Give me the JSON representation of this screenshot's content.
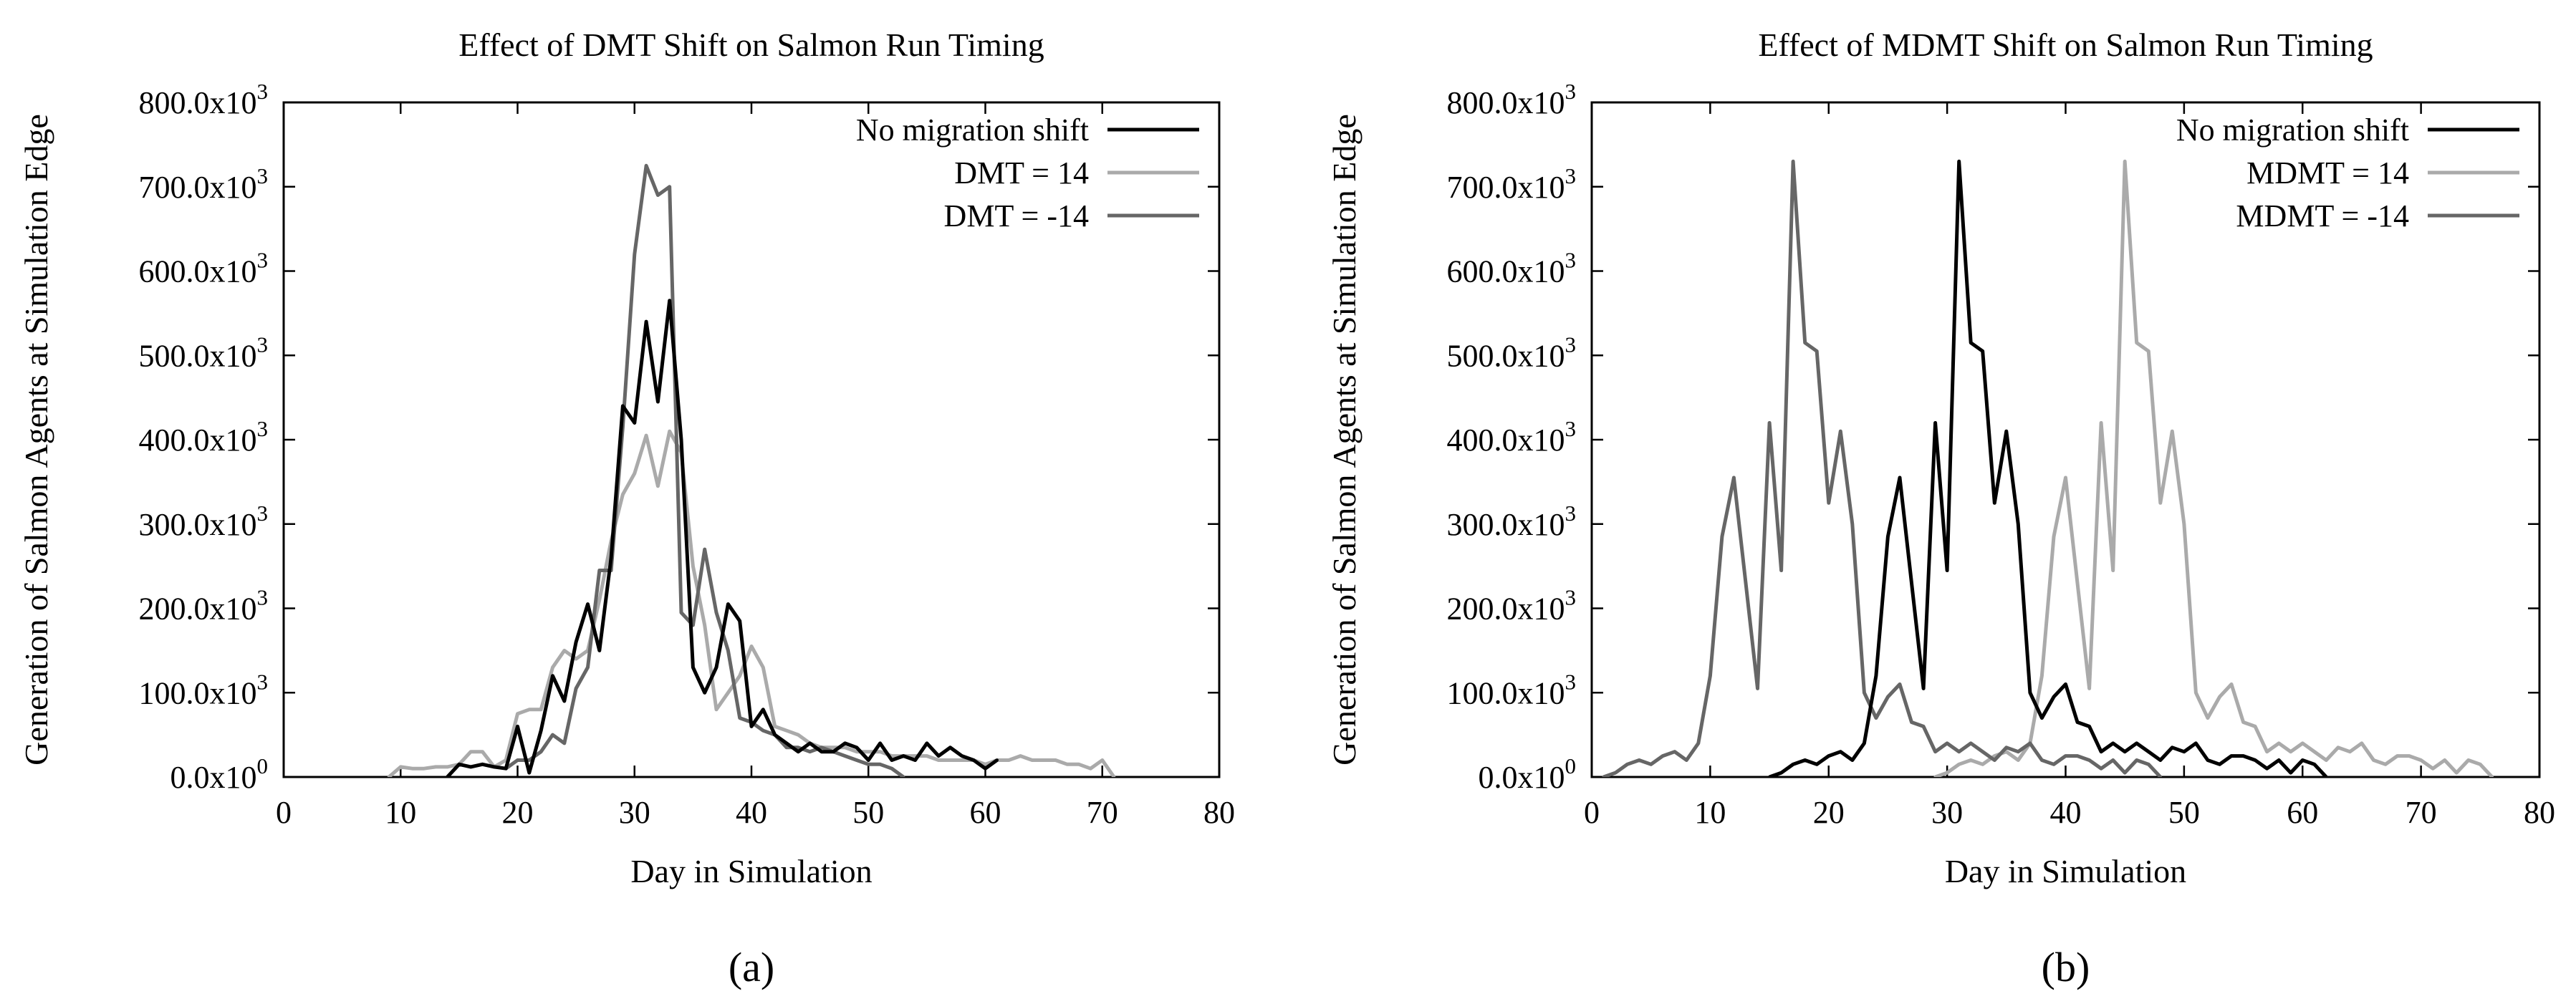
{
  "chart_data": [
    {
      "type": "line",
      "title": "Effect of DMT Shift on Salmon Run Timing",
      "xlabel": "Day in Simulation",
      "ylabel": "Generation of Salmon Agents at Simulation Edge",
      "panel_label": "(a)",
      "xlim": [
        0,
        80
      ],
      "ylim": [
        0,
        800000
      ],
      "x_ticks": [
        0,
        10,
        20,
        30,
        40,
        50,
        60,
        70,
        80
      ],
      "x_tick_labels": [
        "0",
        "10",
        "20",
        "30",
        "40",
        "50",
        "60",
        "70",
        "80"
      ],
      "y_ticks": [
        0,
        100000,
        200000,
        300000,
        400000,
        500000,
        600000,
        700000,
        800000
      ],
      "y_tick_labels": [
        "0.0x10",
        "100.0x10",
        "200.0x10",
        "300.0x10",
        "400.0x10",
        "500.0x10",
        "600.0x10",
        "700.0x10",
        "800.0x10"
      ],
      "y_tick_exponents": [
        "0",
        "3",
        "3",
        "3",
        "3",
        "3",
        "3",
        "3",
        "3"
      ],
      "legend_position": "top-right",
      "series": [
        {
          "name": "No migration shift",
          "color": "#000000",
          "x": [
            14,
            15,
            16,
            17,
            18,
            19,
            20,
            21,
            22,
            23,
            24,
            25,
            26,
            27,
            28,
            29,
            30,
            31,
            32,
            33,
            34,
            35,
            36,
            37,
            38,
            39,
            40,
            41,
            42,
            43,
            44,
            45,
            46,
            47,
            48,
            49,
            50,
            51,
            52,
            53,
            54,
            55,
            56,
            57,
            58,
            59,
            60,
            61
          ],
          "y": [
            0,
            15000,
            12000,
            15000,
            12000,
            10000,
            60000,
            5000,
            55000,
            120000,
            90000,
            160000,
            205000,
            150000,
            260000,
            440000,
            420000,
            540000,
            445000,
            565000,
            400000,
            130000,
            100000,
            130000,
            205000,
            185000,
            60000,
            80000,
            50000,
            40000,
            30000,
            40000,
            30000,
            30000,
            40000,
            35000,
            20000,
            40000,
            20000,
            25000,
            20000,
            40000,
            25000,
            35000,
            25000,
            20000,
            10000,
            20000
          ]
        },
        {
          "name": "DMT = 14",
          "color": "#aaaaaa",
          "x": [
            9,
            10,
            11,
            12,
            13,
            14,
            15,
            16,
            17,
            18,
            19,
            20,
            21,
            22,
            23,
            24,
            25,
            26,
            27,
            28,
            29,
            30,
            31,
            32,
            33,
            34,
            35,
            36,
            37,
            38,
            39,
            40,
            41,
            42,
            43,
            44,
            45,
            46,
            47,
            48,
            49,
            50,
            51,
            52,
            53,
            54,
            55,
            56,
            57,
            58,
            59,
            60,
            61,
            62,
            63,
            64,
            65,
            66,
            67,
            68,
            69,
            70,
            71
          ],
          "y": [
            0,
            12000,
            10000,
            10000,
            12000,
            12000,
            15000,
            30000,
            30000,
            12000,
            20000,
            75000,
            80000,
            80000,
            130000,
            150000,
            140000,
            150000,
            210000,
            280000,
            335000,
            360000,
            405000,
            345000,
            410000,
            385000,
            250000,
            180000,
            80000,
            100000,
            120000,
            155000,
            130000,
            60000,
            55000,
            50000,
            40000,
            35000,
            35000,
            35000,
            30000,
            30000,
            30000,
            25000,
            25000,
            25000,
            25000,
            20000,
            20000,
            20000,
            20000,
            15000,
            20000,
            20000,
            25000,
            20000,
            20000,
            20000,
            15000,
            15000,
            10000,
            20000,
            0
          ]
        },
        {
          "name": "DMT = -14",
          "color": "#666666",
          "x": [
            19,
            20,
            21,
            22,
            23,
            24,
            25,
            26,
            27,
            28,
            29,
            30,
            31,
            32,
            33,
            34,
            35,
            36,
            37,
            38,
            39,
            40,
            41,
            42,
            43,
            44,
            45,
            46,
            47,
            48,
            49,
            50,
            51,
            52,
            53
          ],
          "y": [
            10000,
            20000,
            20000,
            30000,
            50000,
            40000,
            105000,
            130000,
            245000,
            245000,
            415000,
            620000,
            725000,
            690000,
            700000,
            195000,
            180000,
            270000,
            195000,
            150000,
            70000,
            65000,
            55000,
            50000,
            35000,
            35000,
            30000,
            35000,
            30000,
            25000,
            20000,
            15000,
            15000,
            10000,
            0
          ]
        }
      ]
    },
    {
      "type": "line",
      "title": "Effect of MDMT Shift on Salmon Run Timing",
      "xlabel": "Day in Simulation",
      "ylabel": "Generation of Salmon Agents at Simulation Edge",
      "panel_label": "(b)",
      "xlim": [
        0,
        80
      ],
      "ylim": [
        0,
        800000
      ],
      "x_ticks": [
        0,
        10,
        20,
        30,
        40,
        50,
        60,
        70,
        80
      ],
      "x_tick_labels": [
        "0",
        "10",
        "20",
        "30",
        "40",
        "50",
        "60",
        "70",
        "80"
      ],
      "y_ticks": [
        0,
        100000,
        200000,
        300000,
        400000,
        500000,
        600000,
        700000,
        800000
      ],
      "y_tick_labels": [
        "0.0x10",
        "100.0x10",
        "200.0x10",
        "300.0x10",
        "400.0x10",
        "500.0x10",
        "600.0x10",
        "700.0x10",
        "800.0x10"
      ],
      "y_tick_exponents": [
        "0",
        "3",
        "3",
        "3",
        "3",
        "3",
        "3",
        "3",
        "3"
      ],
      "legend_position": "top-right",
      "series": [
        {
          "name": "No migration shift",
          "color": "#000000",
          "x": [
            15,
            16,
            17,
            18,
            19,
            20,
            21,
            22,
            23,
            24,
            25,
            26,
            27,
            28,
            29,
            30,
            31,
            32,
            33,
            34,
            35,
            36,
            37,
            38,
            39,
            40,
            41,
            42,
            43,
            44,
            45,
            46,
            47,
            48,
            49,
            50,
            51,
            52,
            53,
            54,
            55,
            56,
            57,
            58,
            59,
            60,
            61,
            62
          ],
          "y": [
            0,
            5000,
            15000,
            20000,
            15000,
            25000,
            30000,
            20000,
            40000,
            120000,
            285000,
            355000,
            230000,
            105000,
            420000,
            245000,
            730000,
            515000,
            505000,
            325000,
            410000,
            300000,
            100000,
            70000,
            95000,
            110000,
            65000,
            60000,
            30000,
            40000,
            30000,
            40000,
            30000,
            20000,
            35000,
            30000,
            40000,
            20000,
            15000,
            25000,
            25000,
            20000,
            10000,
            20000,
            5000,
            20000,
            15000,
            0
          ]
        },
        {
          "name": "MDMT = 14",
          "color": "#aaaaaa",
          "x": [
            29,
            30,
            31,
            32,
            33,
            34,
            35,
            36,
            37,
            38,
            39,
            40,
            41,
            42,
            43,
            44,
            45,
            46,
            47,
            48,
            49,
            50,
            51,
            52,
            53,
            54,
            55,
            56,
            57,
            58,
            59,
            60,
            61,
            62,
            63,
            64,
            65,
            66,
            67,
            68,
            69,
            70,
            71,
            72,
            73,
            74,
            75,
            76
          ],
          "y": [
            0,
            5000,
            15000,
            20000,
            15000,
            25000,
            30000,
            20000,
            40000,
            120000,
            285000,
            355000,
            230000,
            105000,
            420000,
            245000,
            730000,
            515000,
            505000,
            325000,
            410000,
            300000,
            100000,
            70000,
            95000,
            110000,
            65000,
            60000,
            30000,
            40000,
            30000,
            40000,
            30000,
            20000,
            35000,
            30000,
            40000,
            20000,
            15000,
            25000,
            25000,
            20000,
            10000,
            20000,
            5000,
            20000,
            15000,
            0
          ]
        },
        {
          "name": "MDMT = -14",
          "color": "#666666",
          "x": [
            1,
            2,
            3,
            4,
            5,
            6,
            7,
            8,
            9,
            10,
            11,
            12,
            13,
            14,
            15,
            16,
            17,
            18,
            19,
            20,
            21,
            22,
            23,
            24,
            25,
            26,
            27,
            28,
            29,
            30,
            31,
            32,
            33,
            34,
            35,
            36,
            37,
            38,
            39,
            40,
            41,
            42,
            43,
            44,
            45,
            46,
            47,
            48
          ],
          "y": [
            0,
            5000,
            15000,
            20000,
            15000,
            25000,
            30000,
            20000,
            40000,
            120000,
            285000,
            355000,
            230000,
            105000,
            420000,
            245000,
            730000,
            515000,
            505000,
            325000,
            410000,
            300000,
            100000,
            70000,
            95000,
            110000,
            65000,
            60000,
            30000,
            40000,
            30000,
            40000,
            30000,
            20000,
            35000,
            30000,
            40000,
            20000,
            15000,
            25000,
            25000,
            20000,
            10000,
            20000,
            5000,
            20000,
            15000,
            0
          ]
        }
      ]
    }
  ]
}
